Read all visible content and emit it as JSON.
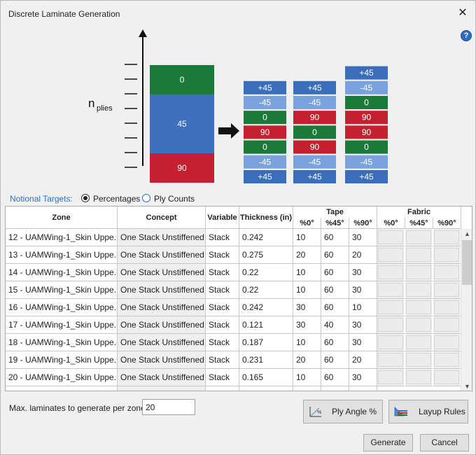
{
  "window": {
    "title": "Discrete Laminate Generation"
  },
  "icons": {
    "close": "close-icon",
    "help": "help-icon",
    "help_glyph": "?",
    "close_glyph": "✕"
  },
  "diagram": {
    "n_label": "n",
    "n_subscript": "plies",
    "source_blocks": [
      "0",
      "45",
      "90"
    ],
    "stacks": [
      [
        "+45",
        "-45",
        "0",
        "90",
        "0",
        "-45",
        "+45"
      ],
      [
        "+45",
        "-45",
        "90",
        "0",
        "90",
        "-45",
        "+45"
      ],
      [
        "+45",
        "-45",
        "0",
        "90",
        "90",
        "0",
        "-45",
        "+45"
      ]
    ],
    "colors": {
      "ply_45": "#3a6ebc",
      "ply_m45": "#7aa2dc",
      "ply_0": "#1b7a3a",
      "ply_90": "#c42030",
      "src_0": "#1b7a3a",
      "src_45": "#3f6fbf",
      "src_90": "#c42030"
    }
  },
  "targets": {
    "label": "Notional Targets:",
    "options": [
      "Percentages",
      "Ply Counts"
    ],
    "selected": "Percentages"
  },
  "table": {
    "headers": {
      "zone": "Zone",
      "concept": "Concept",
      "variable": "Variable",
      "thickness": "Thickness (in)",
      "tape": "Tape",
      "fabric": "Fabric",
      "tape_sub": [
        "%0°",
        "%45°",
        "%90°"
      ],
      "fabric_sub": [
        "%0°",
        "%45°",
        "%90°"
      ]
    },
    "rows": [
      {
        "zone": "12 - UAMWing-1_Skin Uppe...",
        "concept": "One Stack Unstiffened",
        "variable": "Stack",
        "thickness": "0.242",
        "t0": "10",
        "t45": "60",
        "t90": "30"
      },
      {
        "zone": "13 - UAMWing-1_Skin Uppe...",
        "concept": "One Stack Unstiffened",
        "variable": "Stack",
        "thickness": "0.275",
        "t0": "20",
        "t45": "60",
        "t90": "20"
      },
      {
        "zone": "14 - UAMWing-1_Skin Uppe...",
        "concept": "One Stack Unstiffened",
        "variable": "Stack",
        "thickness": "0.22",
        "t0": "10",
        "t45": "60",
        "t90": "30"
      },
      {
        "zone": "15 - UAMWing-1_Skin Uppe...",
        "concept": "One Stack Unstiffened",
        "variable": "Stack",
        "thickness": "0.22",
        "t0": "10",
        "t45": "60",
        "t90": "30"
      },
      {
        "zone": "16 - UAMWing-1_Skin Uppe...",
        "concept": "One Stack Unstiffened",
        "variable": "Stack",
        "thickness": "0.242",
        "t0": "30",
        "t45": "60",
        "t90": "10"
      },
      {
        "zone": "17 - UAMWing-1_Skin Uppe...",
        "concept": "One Stack Unstiffened",
        "variable": "Stack",
        "thickness": "0.121",
        "t0": "30",
        "t45": "40",
        "t90": "30"
      },
      {
        "zone": "18 - UAMWing-1_Skin Uppe...",
        "concept": "One Stack Unstiffened",
        "variable": "Stack",
        "thickness": "0.187",
        "t0": "10",
        "t45": "60",
        "t90": "30"
      },
      {
        "zone": "19 - UAMWing-1_Skin Uppe...",
        "concept": "One Stack Unstiffened",
        "variable": "Stack",
        "thickness": "0.231",
        "t0": "20",
        "t45": "60",
        "t90": "20"
      },
      {
        "zone": "20 - UAMWing-1_Skin Uppe...",
        "concept": "One Stack Unstiffened",
        "variable": "Stack",
        "thickness": "0.165",
        "t0": "10",
        "t45": "60",
        "t90": "30"
      }
    ],
    "scroll_up": "▲",
    "scroll_down": "▼"
  },
  "max_laminates": {
    "label": "Max. laminates to generate per zone",
    "value": "20"
  },
  "buttons": {
    "ply_angle": "Ply Angle %",
    "layup_rules": "Layup Rules",
    "generate": "Generate",
    "cancel": "Cancel"
  }
}
